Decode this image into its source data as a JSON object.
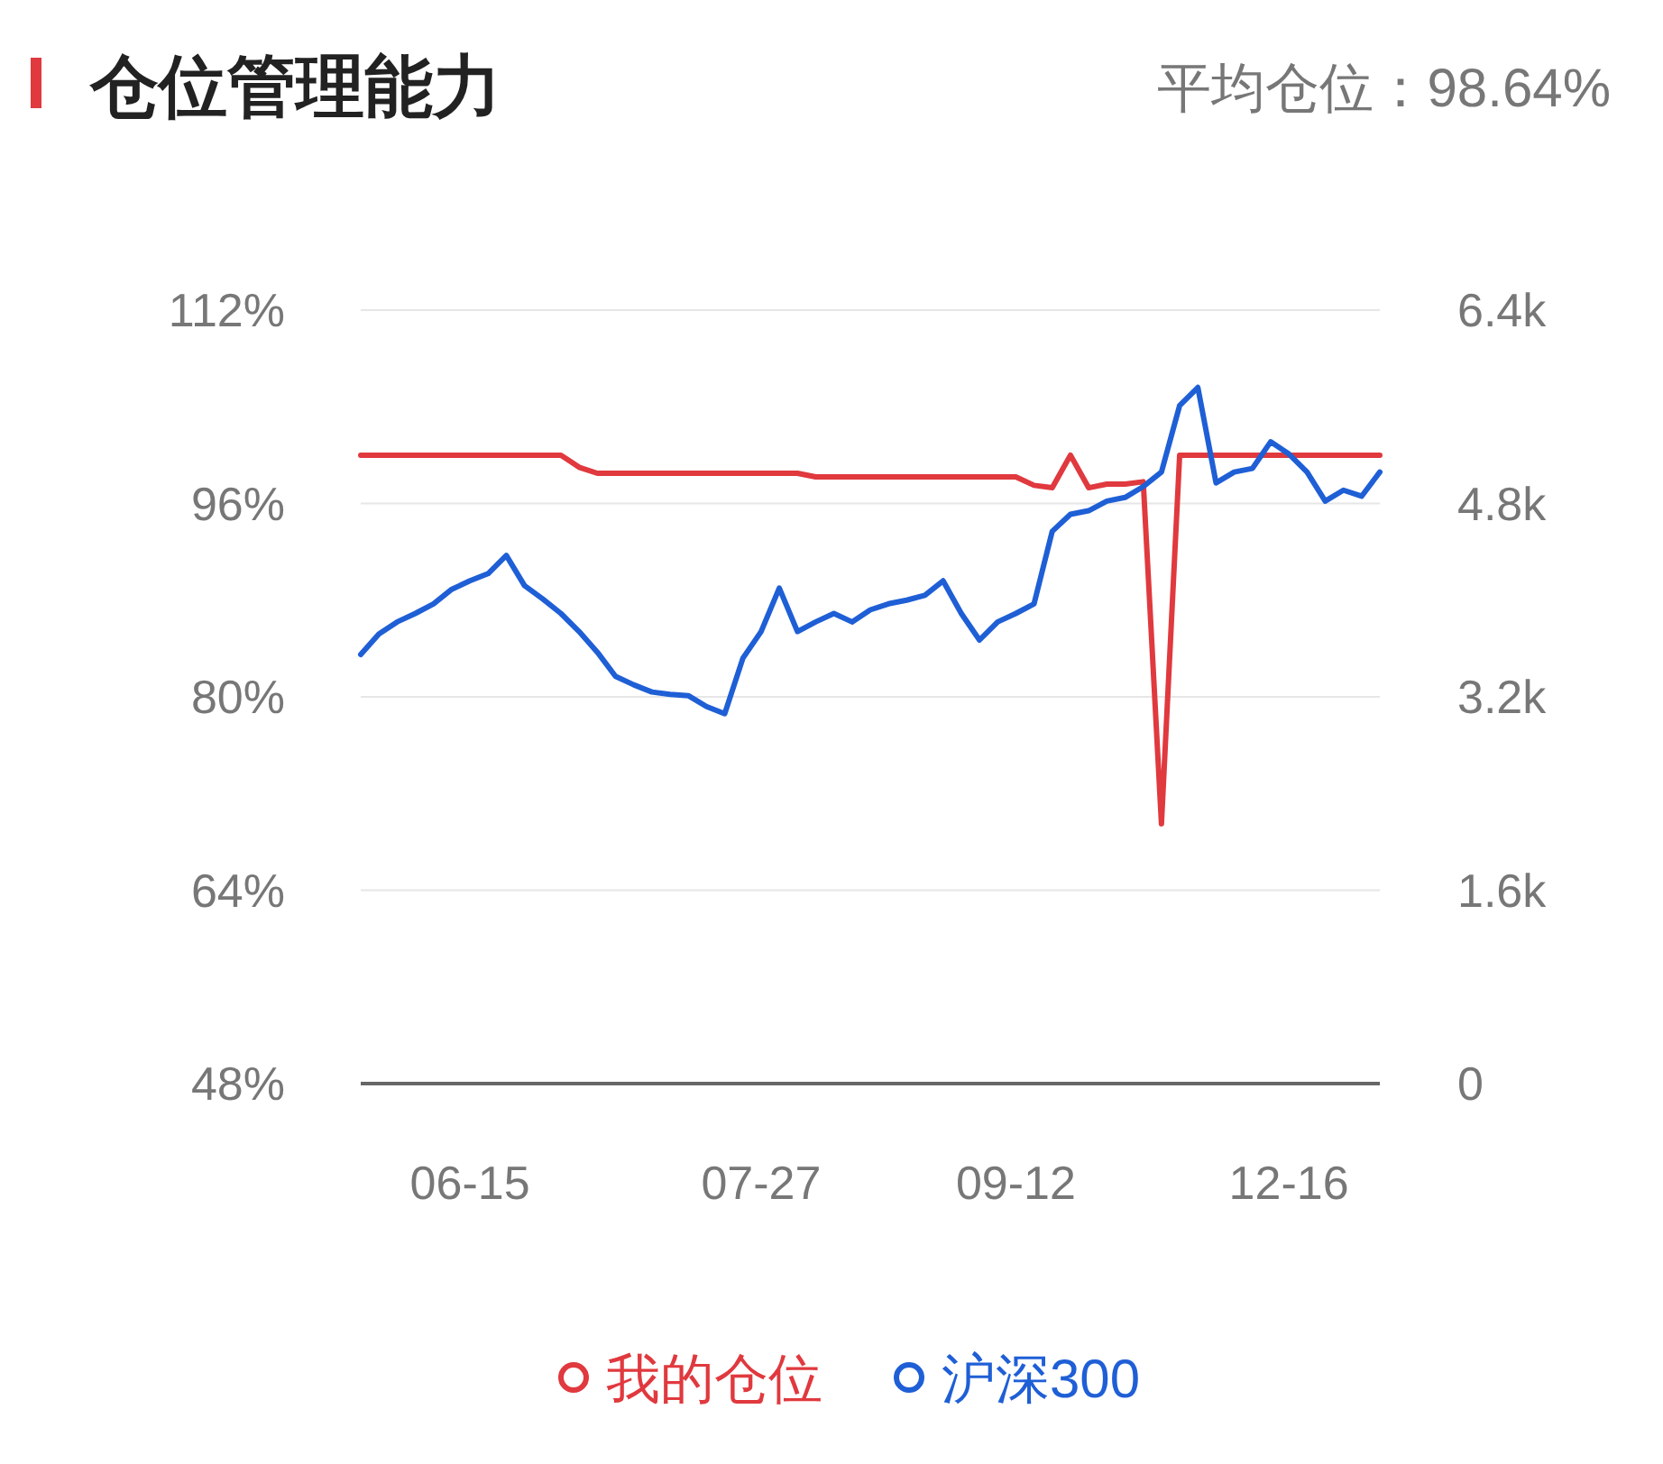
{
  "chart_data": {
    "type": "line",
    "title": "仓位管理能力",
    "subtitle": "平均仓位：98.64%",
    "categories": [
      null,
      null,
      null,
      null,
      null,
      null,
      "06-15",
      null,
      null,
      null,
      null,
      null,
      null,
      null,
      null,
      null,
      null,
      null,
      null,
      null,
      null,
      null,
      "07-27",
      null,
      null,
      null,
      null,
      null,
      null,
      null,
      null,
      null,
      null,
      null,
      null,
      null,
      "09-12",
      null,
      null,
      null,
      null,
      null,
      null,
      null,
      null,
      null,
      null,
      null,
      null,
      null,
      null,
      "12-16",
      null,
      null,
      null,
      null,
      null
    ],
    "series": [
      {
        "name": "我的仓位",
        "color": "#e0393e",
        "axis": "y",
        "values": [
          100,
          100,
          100,
          100,
          100,
          100,
          100,
          100,
          100,
          100,
          100,
          100,
          99.0,
          98.5,
          98.5,
          98.5,
          98.5,
          98.5,
          98.5,
          98.5,
          98.5,
          98.5,
          98.5,
          98.5,
          98.5,
          98.2,
          98.2,
          98.2,
          98.2,
          98.2,
          98.2,
          98.2,
          98.2,
          98.2,
          98.2,
          98.2,
          98.2,
          97.5,
          97.3,
          100,
          97.3,
          97.6,
          97.6,
          97.8,
          69.5,
          100,
          100,
          100,
          100,
          100,
          100,
          100,
          100,
          100,
          100,
          100,
          100
        ]
      },
      {
        "name": "沪深300",
        "color": "#1f5fd6",
        "axis": "y2",
        "values": [
          3.55,
          3.72,
          3.82,
          3.89,
          3.97,
          4.09,
          4.16,
          4.22,
          4.37,
          4.12,
          4.01,
          3.89,
          3.74,
          3.57,
          3.37,
          3.3,
          3.24,
          3.22,
          3.21,
          3.12,
          3.06,
          3.52,
          3.74,
          4.1,
          3.74,
          3.82,
          3.89,
          3.82,
          3.92,
          3.97,
          4.0,
          4.04,
          4.16,
          3.89,
          3.67,
          3.82,
          3.89,
          3.97,
          4.57,
          4.71,
          4.74,
          4.82,
          4.85,
          4.94,
          5.06,
          5.61,
          5.76,
          4.97,
          5.06,
          5.09,
          5.31,
          5.21,
          5.06,
          4.82,
          4.91,
          4.86,
          5.06
        ]
      }
    ],
    "ylim": [
      48,
      112
    ],
    "yticks": [
      {
        "value": 48,
        "label": "48%"
      },
      {
        "value": 64,
        "label": "64%"
      },
      {
        "value": 80,
        "label": "80%"
      },
      {
        "value": 96,
        "label": "96%"
      },
      {
        "value": 112,
        "label": "112%"
      }
    ],
    "y2lim": [
      0,
      6.4
    ],
    "y2ticks": [
      {
        "value": 0,
        "label": "0"
      },
      {
        "value": 1.6,
        "label": "1.6k"
      },
      {
        "value": 3.2,
        "label": "3.2k"
      },
      {
        "value": 4.8,
        "label": "4.8k"
      },
      {
        "value": 6.4,
        "label": "6.4k"
      }
    ],
    "grid": "y",
    "legend": "bottom"
  }
}
